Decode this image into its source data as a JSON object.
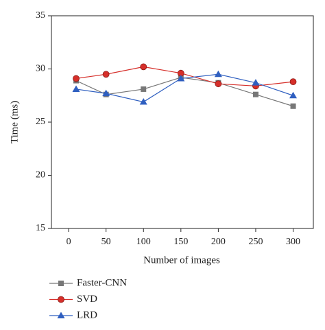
{
  "chart_data": {
    "type": "line",
    "x_label": "Number of images",
    "y_label": "Time (ms)",
    "x": [
      10,
      50,
      100,
      150,
      200,
      250,
      300
    ],
    "series": [
      {
        "name": "Faster-CNN",
        "color": "#777777",
        "marker": "square",
        "values": [
          28.9,
          27.6,
          28.1,
          29.2,
          28.7,
          27.6,
          26.5
        ]
      },
      {
        "name": "SVD",
        "color": "#d62f2a",
        "marker": "circle",
        "values": [
          29.1,
          29.5,
          30.2,
          29.6,
          28.6,
          28.4,
          28.8
        ]
      },
      {
        "name": "LRD",
        "color": "#2f5fc0",
        "marker": "triangle",
        "values": [
          28.1,
          27.7,
          26.9,
          29.1,
          29.5,
          28.7,
          27.5
        ]
      }
    ],
    "xlim": [
      -23,
      327
    ],
    "xticks": [
      0,
      50,
      100,
      150,
      200,
      250,
      300
    ],
    "ylim": [
      15,
      35
    ],
    "yticks": [
      15,
      20,
      25,
      30,
      35
    ],
    "legend": "bottom-left"
  }
}
